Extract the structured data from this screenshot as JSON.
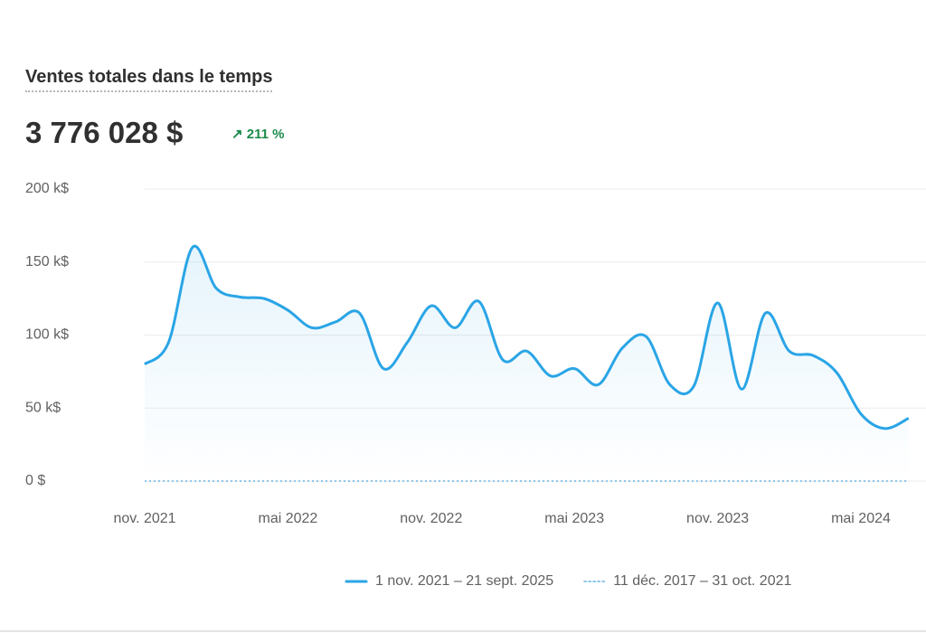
{
  "title": "Ventes totales dans le temps",
  "total": "3 776 028 $",
  "change": "211 %",
  "chart_data": {
    "type": "line",
    "categories": [
      "nov. 2021",
      null,
      null,
      null,
      null,
      null,
      "mai 2022",
      null,
      null,
      null,
      null,
      null,
      "nov. 2022",
      null,
      null,
      null,
      null,
      null,
      "mai 2023",
      null,
      null,
      null,
      null,
      null,
      "nov. 2023",
      null,
      null,
      null,
      null,
      null,
      "mai 2024",
      null,
      null
    ],
    "series": [
      {
        "name": "1 nov. 2021 – 21 sept. 2025",
        "color": "#2aa5e6",
        "style": "solid",
        "values": [
          80000,
          95000,
          160000,
          132000,
          126000,
          125000,
          117000,
          105000,
          109000,
          115000,
          77000,
          95000,
          120000,
          105000,
          123000,
          83000,
          89000,
          72000,
          77000,
          66000,
          91000,
          99000,
          66000,
          65000,
          122000,
          63000,
          115000,
          89000,
          86000,
          74000,
          46000,
          36000,
          43000
        ]
      },
      {
        "name": "11 déc. 2017 – 31 oct. 2021",
        "color": "#8cc7ee",
        "style": "dotted",
        "values": [
          0,
          0,
          0,
          0,
          0,
          0,
          0,
          0,
          0,
          0,
          0,
          0,
          0,
          0,
          0,
          0,
          0,
          0,
          0,
          0,
          0,
          0,
          0,
          0,
          0,
          0,
          0,
          0,
          0,
          0,
          0,
          0,
          0
        ]
      }
    ],
    "ylim": [
      0,
      200000
    ],
    "yticks": [
      {
        "value": 0,
        "label": "0 $"
      },
      {
        "value": 50000,
        "label": "50 k$"
      },
      {
        "value": 100000,
        "label": "100 k$"
      },
      {
        "value": 150000,
        "label": "150 k$"
      },
      {
        "value": 200000,
        "label": "200 k$"
      }
    ],
    "grid": true
  }
}
